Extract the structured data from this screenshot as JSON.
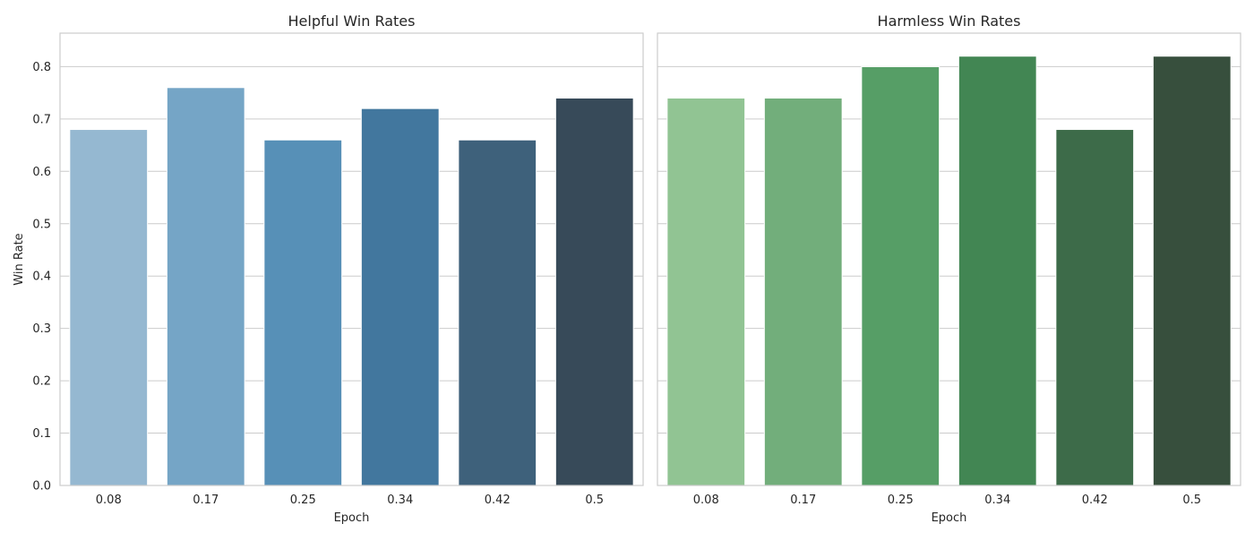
{
  "chart_data": [
    {
      "type": "bar",
      "title": "Helpful Win Rates",
      "xlabel": "Epoch",
      "ylabel": "Win Rate",
      "categories": [
        "0.08",
        "0.17",
        "0.25",
        "0.34",
        "0.42",
        "0.5"
      ],
      "values": [
        0.68,
        0.76,
        0.66,
        0.72,
        0.66,
        0.74
      ],
      "colors": [
        "#95b8d1",
        "#75a5c6",
        "#5790b7",
        "#42779e",
        "#3e617b",
        "#374a59"
      ],
      "ylim": [
        0,
        0.864
      ],
      "yticks": [
        "0.0",
        "0.1",
        "0.2",
        "0.3",
        "0.4",
        "0.5",
        "0.6",
        "0.7",
        "0.8"
      ],
      "grid": "horizontal",
      "show_yticklabels": true
    },
    {
      "type": "bar",
      "title": "Harmless Win Rates",
      "xlabel": "Epoch",
      "ylabel": "",
      "categories": [
        "0.08",
        "0.17",
        "0.25",
        "0.34",
        "0.42",
        "0.5"
      ],
      "values": [
        0.74,
        0.74,
        0.8,
        0.82,
        0.68,
        0.82
      ],
      "colors": [
        "#91c493",
        "#72ae7b",
        "#569e66",
        "#428653",
        "#3d6b49",
        "#374f3d"
      ],
      "ylim": [
        0,
        0.864
      ],
      "yticks": [
        "0.0",
        "0.1",
        "0.2",
        "0.3",
        "0.4",
        "0.5",
        "0.6",
        "0.7",
        "0.8"
      ],
      "grid": "horizontal",
      "show_yticklabels": false
    }
  ]
}
